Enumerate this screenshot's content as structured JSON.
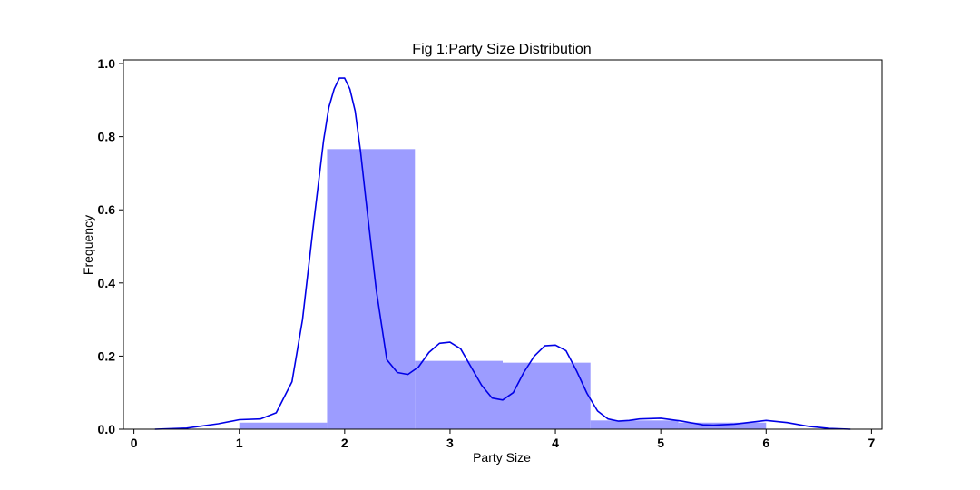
{
  "chart_data": {
    "type": "bar",
    "title": "Fig 1:Party Size Distribution",
    "xlabel": "Party Size",
    "ylabel": "Frequency",
    "xlim": [
      -0.1,
      7.1
    ],
    "ylim": [
      0,
      1.01
    ],
    "x_ticks": [
      0,
      1,
      2,
      3,
      4,
      5,
      6,
      7
    ],
    "y_ticks": [
      0.0,
      0.2,
      0.4,
      0.6,
      0.8,
      1.0
    ],
    "x_tick_labels": [
      "0",
      "1",
      "2",
      "3",
      "4",
      "5",
      "6",
      "7"
    ],
    "y_tick_labels": [
      "0.0",
      "0.2",
      "0.4",
      "0.6",
      "0.8",
      "1.0"
    ],
    "grid": false,
    "histogram": {
      "bin_edges": [
        1.0,
        1.833,
        2.667,
        3.5,
        4.333,
        5.167,
        6.0
      ],
      "values": [
        0.018,
        0.766,
        0.187,
        0.182,
        0.024,
        0.018
      ],
      "color": "#9c9cff"
    },
    "kde": {
      "color": "#0000e6",
      "x": [
        0.2,
        0.5,
        0.8,
        1.0,
        1.2,
        1.35,
        1.5,
        1.6,
        1.7,
        1.8,
        1.85,
        1.9,
        1.95,
        2.0,
        2.05,
        2.1,
        2.15,
        2.2,
        2.3,
        2.4,
        2.5,
        2.6,
        2.7,
        2.8,
        2.9,
        3.0,
        3.1,
        3.2,
        3.3,
        3.4,
        3.5,
        3.6,
        3.7,
        3.8,
        3.9,
        4.0,
        4.1,
        4.2,
        4.3,
        4.4,
        4.5,
        4.6,
        4.7,
        4.8,
        5.0,
        5.2,
        5.4,
        5.5,
        5.7,
        6.0,
        6.2,
        6.4,
        6.6,
        6.8
      ],
      "y": [
        0.0,
        0.003,
        0.015,
        0.026,
        0.028,
        0.045,
        0.13,
        0.3,
        0.55,
        0.79,
        0.88,
        0.93,
        0.96,
        0.96,
        0.93,
        0.87,
        0.76,
        0.63,
        0.38,
        0.19,
        0.155,
        0.15,
        0.17,
        0.21,
        0.235,
        0.238,
        0.22,
        0.17,
        0.12,
        0.085,
        0.08,
        0.1,
        0.155,
        0.2,
        0.228,
        0.23,
        0.215,
        0.16,
        0.098,
        0.05,
        0.028,
        0.022,
        0.024,
        0.028,
        0.03,
        0.022,
        0.012,
        0.011,
        0.014,
        0.024,
        0.018,
        0.008,
        0.002,
        0.0
      ]
    }
  }
}
